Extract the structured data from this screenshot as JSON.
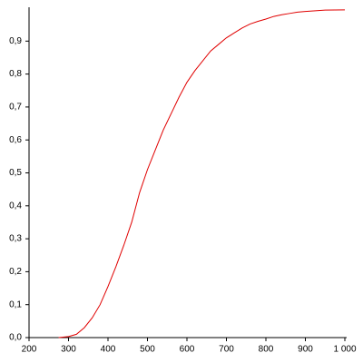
{
  "chart_data": {
    "type": "line",
    "x": [
      275,
      300,
      320,
      340,
      360,
      380,
      400,
      420,
      440,
      460,
      480,
      500,
      520,
      540,
      560,
      580,
      600,
      620,
      640,
      660,
      680,
      700,
      720,
      740,
      760,
      780,
      800,
      820,
      840,
      860,
      880,
      900,
      950,
      1000
    ],
    "series": [
      {
        "color": "#e00000",
        "values": [
          0,
          0.003,
          0.01,
          0.03,
          0.06,
          0.1,
          0.155,
          0.215,
          0.28,
          0.35,
          0.44,
          0.51,
          0.57,
          0.63,
          0.68,
          0.73,
          0.775,
          0.81,
          0.84,
          0.87,
          0.89,
          0.91,
          0.925,
          0.94,
          0.952,
          0.96,
          0.967,
          0.975,
          0.98,
          0.984,
          0.988,
          0.99,
          0.994,
          0.995
        ]
      }
    ],
    "xlim": [
      200,
      1000
    ],
    "ylim": [
      0,
      1
    ],
    "xticks": [
      200,
      300,
      400,
      500,
      600,
      700,
      800,
      900,
      {
        "value": 1000,
        "label": "1 000"
      }
    ],
    "yticks": [
      {
        "value": 0,
        "label": "0,0"
      },
      {
        "value": 0.1,
        "label": "0,1"
      },
      {
        "value": 0.2,
        "label": "0,2"
      },
      {
        "value": 0.3,
        "label": "0,3"
      },
      {
        "value": 0.4,
        "label": "0,4"
      },
      {
        "value": 0.5,
        "label": "0,5"
      },
      {
        "value": 0.6,
        "label": "0,6"
      },
      {
        "value": 0.7,
        "label": "0,7"
      },
      {
        "value": 0.8,
        "label": "0,8"
      },
      {
        "value": 0.9,
        "label": "0,9"
      }
    ],
    "grid": false
  }
}
